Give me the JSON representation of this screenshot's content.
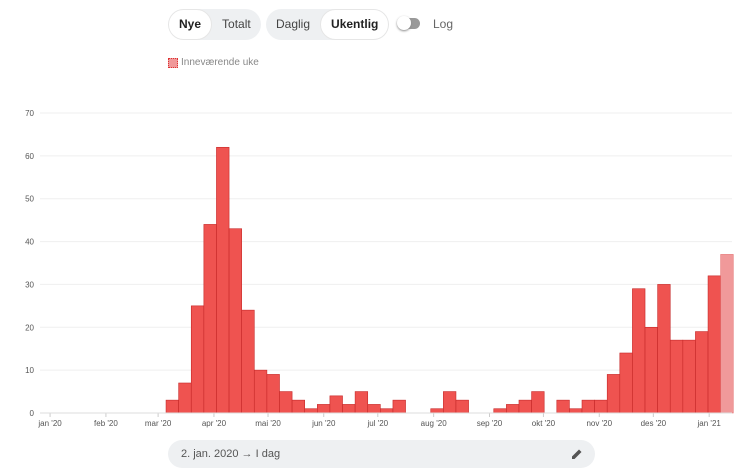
{
  "controls": {
    "mode": [
      "Nye",
      "Totalt"
    ],
    "mode_selected": 0,
    "interval": [
      "Daglig",
      "Ukentlig"
    ],
    "interval_selected": 1,
    "log_label": "Log",
    "date_range": "2. jan. 2020 → I dag"
  },
  "chart_data": {
    "type": "bar",
    "legend": "Inneværende uke",
    "color": "#ef5350",
    "current_week_color": "#f0999a",
    "log_scale": false,
    "grid": true,
    "categories": [
      null,
      null,
      null,
      null,
      null,
      null,
      null,
      null,
      null,
      null,
      null,
      null,
      null,
      null,
      null,
      null,
      null,
      null,
      null,
      null,
      null,
      null,
      null,
      null,
      null,
      null,
      null,
      null,
      null,
      null,
      null,
      null,
      null,
      null,
      null,
      null,
      null,
      null,
      null,
      null,
      null,
      null,
      null,
      null,
      null,
      null,
      null,
      null,
      null,
      null,
      null,
      null,
      null,
      null
    ],
    "values": [
      0,
      0,
      0,
      0,
      0,
      0,
      0,
      0,
      0,
      3,
      7,
      25,
      44,
      62,
      43,
      24,
      10,
      9,
      5,
      3,
      1,
      2,
      4,
      2,
      5,
      2,
      1,
      3,
      0,
      0,
      1,
      5,
      3,
      0,
      0,
      1,
      2,
      3,
      5,
      0,
      3,
      1,
      3,
      3,
      9,
      14,
      29,
      20,
      30,
      17,
      17,
      19,
      32,
      37
    ],
    "ylim": [
      0,
      70
    ],
    "yticks": [
      0,
      10,
      20,
      30,
      40,
      50,
      60,
      70
    ],
    "xlim": [
      -0.8,
      54.1
    ],
    "xticks": [
      {
        "value": 0,
        "label": "jan '20"
      },
      {
        "value": 4.43,
        "label": "feb '20"
      },
      {
        "value": 8.57,
        "label": "mar '20"
      },
      {
        "value": 13,
        "label": "apr '20"
      },
      {
        "value": 17.29,
        "label": "mai '20"
      },
      {
        "value": 21.71,
        "label": "jun '20"
      },
      {
        "value": 26,
        "label": "jul '20"
      },
      {
        "value": 30.43,
        "label": "aug '20"
      },
      {
        "value": 34.86,
        "label": "sep '20"
      },
      {
        "value": 39.14,
        "label": "okt '20"
      },
      {
        "value": 43.57,
        "label": "nov '20"
      },
      {
        "value": 47.86,
        "label": "des '20"
      },
      {
        "value": 52.29,
        "label": "jan '21"
      }
    ]
  }
}
